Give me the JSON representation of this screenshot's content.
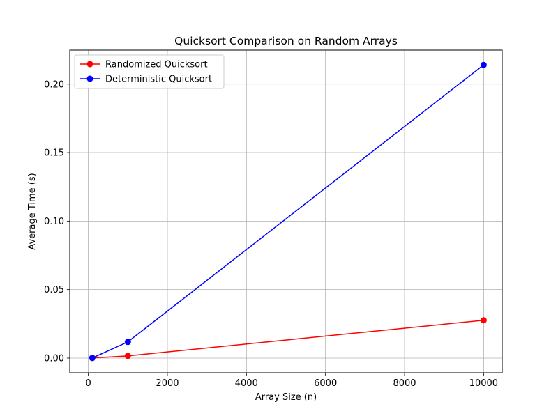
{
  "chart_data": {
    "type": "line",
    "title": "Quicksort Comparison on Random Arrays",
    "xlabel": "Array Size (n)",
    "ylabel": "Average Time (s)",
    "xlim": [
      -470,
      10470
    ],
    "ylim": [
      -0.0107,
      0.2248
    ],
    "xticks": [
      0,
      2000,
      4000,
      6000,
      8000,
      10000
    ],
    "xtick_labels": [
      "0",
      "2000",
      "4000",
      "6000",
      "8000",
      "10000"
    ],
    "yticks": [
      0,
      0.05,
      0.1,
      0.15,
      0.2
    ],
    "ytick_labels": [
      "0.00",
      "0.05",
      "0.10",
      "0.15",
      "0.20"
    ],
    "grid": true,
    "legend_position": "top-left",
    "x": [
      100,
      1000,
      10000
    ],
    "series": [
      {
        "name": "Randomized Quicksort",
        "color": "#ff0000",
        "marker": "circle",
        "values": [
          0.0001,
          0.0016,
          0.0276
        ]
      },
      {
        "name": "Deterministic Quicksort",
        "color": "#0000ff",
        "marker": "circle",
        "values": [
          0.0001,
          0.0118,
          0.214
        ]
      }
    ]
  }
}
